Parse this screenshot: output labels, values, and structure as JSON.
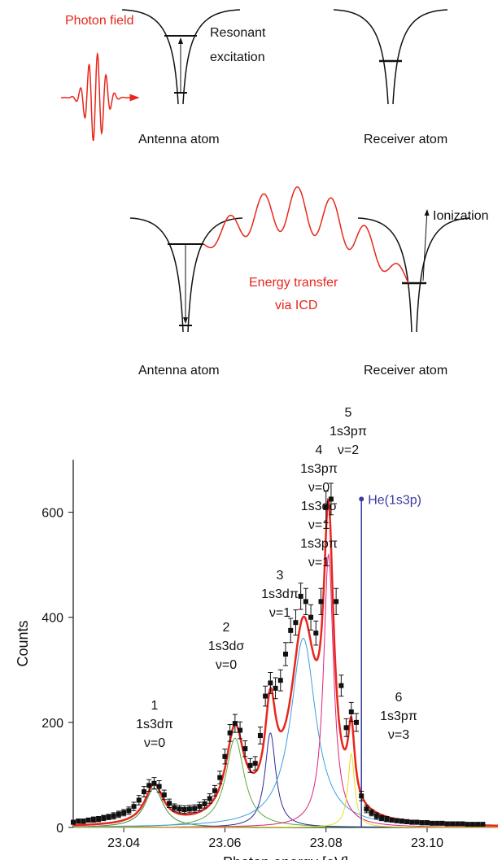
{
  "diagram": {
    "top": {
      "photon": "Photon field",
      "resonant": [
        "Resonant",
        "excitation"
      ],
      "antenna": "Antenna atom",
      "receiver": "Receiver atom"
    },
    "bottom": {
      "ionization": "Ionization",
      "transfer": [
        "Energy transfer",
        "via ICD"
      ],
      "antenna": "Antenna atom",
      "receiver": "Receiver atom"
    }
  },
  "chart_data": {
    "type": "scatter",
    "xlabel": "Photon energy [eV]",
    "ylabel": "Counts",
    "xlim": [
      23.03,
      23.114
    ],
    "ylim": [
      0,
      700
    ],
    "xticks": [
      23.04,
      23.06,
      23.08,
      {
        "value": 23.1,
        "label": "23.10"
      }
    ],
    "yticks": [
      0,
      200,
      400,
      600
    ],
    "x": [
      23.03,
      23.031,
      23.032,
      23.033,
      23.034,
      23.035,
      23.036,
      23.037,
      23.038,
      23.039,
      23.04,
      23.041,
      23.042,
      23.043,
      23.044,
      23.045,
      23.046,
      23.047,
      23.048,
      23.049,
      23.05,
      23.051,
      23.052,
      23.053,
      23.054,
      23.055,
      23.056,
      23.057,
      23.058,
      23.059,
      23.06,
      23.061,
      23.062,
      23.063,
      23.064,
      23.065,
      23.066,
      23.067,
      23.068,
      23.069,
      23.07,
      23.071,
      23.072,
      23.073,
      23.074,
      23.075,
      23.076,
      23.077,
      23.078,
      23.079,
      23.08,
      23.081,
      23.082,
      23.083,
      23.084,
      23.085,
      23.086,
      23.087,
      23.088,
      23.089,
      23.09,
      23.091,
      23.092,
      23.093,
      23.094,
      23.095,
      23.096,
      23.097,
      23.098,
      23.099,
      23.1,
      23.101,
      23.102,
      23.103,
      23.104,
      23.105,
      23.106,
      23.107,
      23.108,
      23.109,
      23.11,
      23.111
    ],
    "series": [
      {
        "color": "#111111",
        "values": [
          10,
          12,
          12,
          14,
          15,
          16,
          18,
          20,
          22,
          25,
          28,
          32,
          40,
          52,
          68,
          80,
          84,
          78,
          62,
          46,
          38,
          35,
          34,
          35,
          36,
          40,
          45,
          55,
          70,
          95,
          135,
          180,
          198,
          185,
          150,
          118,
          122,
          175,
          250,
          275,
          265,
          280,
          330,
          375,
          390,
          440,
          430,
          400,
          370,
          430,
          610,
          625,
          430,
          270,
          190,
          220,
          200,
          60,
          35,
          28,
          22,
          18,
          16,
          14,
          13,
          12,
          11,
          10,
          10,
          9,
          9,
          8,
          8,
          8,
          7,
          7,
          7,
          7,
          6,
          6,
          6,
          6
        ],
        "errors": [
          4,
          4,
          4,
          4,
          5,
          5,
          5,
          5,
          6,
          6,
          6,
          7,
          8,
          9,
          10,
          11,
          11,
          11,
          9,
          8,
          7,
          7,
          7,
          7,
          7,
          8,
          8,
          9,
          10,
          12,
          14,
          16,
          17,
          16,
          15,
          13,
          13,
          16,
          19,
          20,
          20,
          20,
          22,
          23,
          24,
          25,
          25,
          24,
          23,
          25,
          30,
          30,
          25,
          20,
          17,
          18,
          17,
          9,
          7,
          6,
          6,
          5,
          5,
          4,
          4,
          4,
          4,
          4,
          4,
          4,
          4,
          3,
          3,
          3,
          3,
          3,
          3,
          3,
          3,
          3,
          3,
          3
        ]
      }
    ],
    "fit_color": "#e8261c",
    "peaks": [
      {
        "label": [
          "1",
          "1s3dπ",
          "ν=0"
        ],
        "center": 23.046,
        "height": 75,
        "width": 0.0022,
        "color": "#3c8c3c"
      },
      {
        "label": [
          "2",
          "1s3dσ",
          "ν=0"
        ],
        "center": 23.062,
        "height": 170,
        "width": 0.0022,
        "color": "#5aaa3a"
      },
      {
        "label": [
          "3",
          "1s3dπ",
          "ν=1"
        ],
        "center": 23.069,
        "height": 180,
        "width": 0.0013,
        "color": "#2a2a9a"
      },
      {
        "label": [
          "4",
          "1s3pπ",
          "ν=0",
          "1s3dσ",
          "ν=1",
          "1s3pπ",
          "ν=1"
        ],
        "center": 23.0755,
        "height": 360,
        "width": 0.003,
        "color": "#3aa0e0"
      },
      {
        "label": [
          "5",
          "1s3pπ",
          "ν=2"
        ],
        "center": 23.0805,
        "height": 520,
        "width": 0.0012,
        "color": "#e0207a"
      },
      {
        "label": [
          "6",
          "1s3pπ",
          "ν=3"
        ],
        "center": 23.085,
        "height": 140,
        "width": 0.0008,
        "color": "#e8e020"
      }
    ],
    "reference": {
      "label": "He(1s3p)",
      "x": 23.087,
      "value": 625,
      "color": "#3a3aa0"
    }
  }
}
